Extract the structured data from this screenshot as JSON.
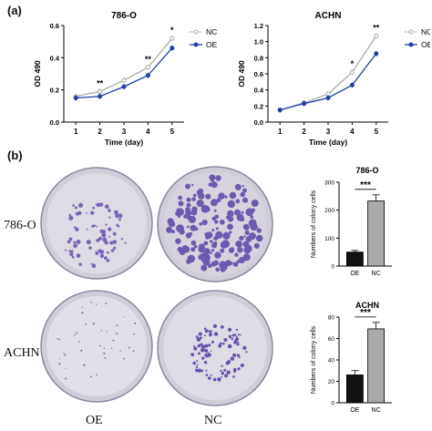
{
  "panels": {
    "a": "(a)",
    "b": "(b)"
  },
  "row_labels": [
    "786-O",
    "ACHN"
  ],
  "col_labels": [
    "OE",
    "NC"
  ],
  "colors": {
    "NC": "#a9a9a9",
    "OE": "#1f3fa8",
    "colony": "#6a4fb0",
    "dish": "#d8d6df",
    "bar_OE": "#111111",
    "bar_NC": "#aaaaaa"
  },
  "chart_data": [
    {
      "type": "line",
      "title": "786-O",
      "xlabel": "Time (day)",
      "ylabel": "OD 490",
      "x": [
        1,
        2,
        3,
        4,
        5
      ],
      "xticks": [
        "1",
        "2",
        "3",
        "4",
        "5"
      ],
      "ylim": [
        0,
        0.6
      ],
      "yticks": [
        "0.0",
        "0.2",
        "0.4",
        "0.6"
      ],
      "series": [
        {
          "name": "NC",
          "values": [
            0.16,
            0.19,
            0.26,
            0.34,
            0.52
          ]
        },
        {
          "name": "OE",
          "values": [
            0.15,
            0.16,
            0.22,
            0.29,
            0.46
          ]
        }
      ],
      "annotations": [
        {
          "x": 2,
          "text": "**"
        },
        {
          "x": 4,
          "text": "**"
        },
        {
          "x": 5,
          "text": "*"
        }
      ],
      "legend": "right"
    },
    {
      "type": "line",
      "title": "ACHN",
      "xlabel": "Time (day)",
      "ylabel": "OD 490",
      "x": [
        1,
        2,
        3,
        4,
        5
      ],
      "xticks": [
        "1",
        "2",
        "3",
        "4",
        "5"
      ],
      "ylim": [
        0,
        1.2
      ],
      "yticks": [
        "0.0",
        "0.2",
        "0.4",
        "0.6",
        "0.8",
        "1.0",
        "1.2"
      ],
      "series": [
        {
          "name": "NC",
          "values": [
            0.15,
            0.24,
            0.35,
            0.62,
            1.07
          ]
        },
        {
          "name": "OE",
          "values": [
            0.15,
            0.23,
            0.3,
            0.46,
            0.85
          ]
        }
      ],
      "annotations": [
        {
          "x": 4,
          "text": "*"
        },
        {
          "x": 5,
          "text": "**"
        }
      ],
      "legend": "right"
    },
    {
      "type": "bar",
      "title": "786-O",
      "ylabel": "Numbers of colony cells",
      "categories": [
        "OE",
        "NC"
      ],
      "values": [
        50,
        233
      ],
      "errors": [
        6,
        22
      ],
      "ylim": [
        0,
        300
      ],
      "yticks": [
        "0",
        "100",
        "200",
        "300"
      ],
      "annotation": "***"
    },
    {
      "type": "bar",
      "title": "ACHN",
      "ylabel": "Numbers of colony cells",
      "categories": [
        "OE",
        "NC"
      ],
      "values": [
        26,
        69
      ],
      "errors": [
        4,
        6
      ],
      "ylim": [
        0,
        80
      ],
      "yticks": [
        "0",
        "20",
        "40",
        "60",
        "80"
      ],
      "annotation": "***"
    }
  ]
}
